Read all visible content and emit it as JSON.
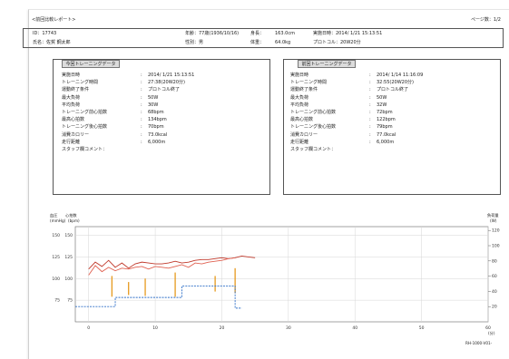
{
  "report": {
    "title": "<前回比較レポート>",
    "page_label": "ページ数：1/2",
    "id_label": "ID：17743",
    "name_label": "氏名：佐賀 鋼太郎",
    "age_label": "年齢：77歳(1936/10/16)",
    "height_label": "身長：",
    "height_value": "163.0cm",
    "sex_label": "性別：男",
    "weight_label": "体重：",
    "weight_value": "64.0kg",
    "date_label": "実施日時：2014/ 1/21 15:13:51",
    "protocol_label": "プロトコル：20W20分",
    "footer_model": "RH-1000-V01-"
  },
  "current_panel": {
    "header": "今回トレーニングデータ",
    "rows": [
      {
        "label": "実施日時",
        "value": "2014/ 1/21  15:13:51"
      },
      {
        "label": "トレーニング時間",
        "value": "27:38(20W20分)"
      },
      {
        "label": "運動終了条件",
        "value": "プロトコル終了"
      },
      {
        "label": "最大負荷",
        "value": "50W"
      },
      {
        "label": "平均負荷",
        "value": "30W"
      },
      {
        "label": "トレーニング前心拍数",
        "value": "68bpm"
      },
      {
        "label": "最高心拍数",
        "value": "134bpm"
      },
      {
        "label": "トレーニング後心拍数",
        "value": "70bpm"
      },
      {
        "label": "消費カロリー",
        "value": "73.0kcal"
      },
      {
        "label": "走行距離",
        "value": "6,000m"
      },
      {
        "label": "スタッフ欄コメント：",
        "value": ""
      }
    ]
  },
  "previous_panel": {
    "header": "前回トレーニングデータ",
    "rows": [
      {
        "label": "実施日時",
        "value": "2014/ 1/14  11:16:09"
      },
      {
        "label": "トレーニング時間",
        "value": "32:55(20W20分)"
      },
      {
        "label": "運動終了条件",
        "value": "プロトコル終了"
      },
      {
        "label": "最大負荷",
        "value": "50W"
      },
      {
        "label": "平均負荷",
        "value": "32W"
      },
      {
        "label": "トレーニング前心拍数",
        "value": "72bpm"
      },
      {
        "label": "最高心拍数",
        "value": "122bpm"
      },
      {
        "label": "トレーニング後心拍数",
        "value": "79bpm"
      },
      {
        "label": "消費カロリー",
        "value": "77.0kcal"
      },
      {
        "label": "走行距離",
        "value": "6,000m"
      },
      {
        "label": "スタッフ欄コメント：",
        "value": ""
      }
    ]
  },
  "chart_data": {
    "type": "line",
    "title": "",
    "left_axis_header_1": "血圧",
    "left_axis_header_2": "心拍数",
    "left_axis_unit_1": "(mmHg)",
    "left_axis_unit_2": "(bpm)",
    "right_axis_header": "負荷量",
    "right_axis_unit": "(W)",
    "x_unit": "(分)",
    "x_ticks": [
      0,
      10,
      20,
      30,
      40,
      50,
      60
    ],
    "xlim": [
      -2,
      60
    ],
    "y_ticks": [
      75,
      100,
      125,
      150
    ],
    "ylim": [
      50,
      160
    ],
    "right_ticks": [
      20,
      40,
      60,
      80,
      100,
      120
    ],
    "right_lim": [
      0,
      125
    ],
    "series": [
      {
        "name": "",
        "color": "#c0392b",
        "x": [
          0,
          1,
          2,
          3,
          4,
          5,
          6,
          7,
          8,
          9,
          10,
          11,
          12,
          13,
          14,
          15,
          16,
          17,
          18,
          19,
          20,
          21,
          22,
          23,
          24,
          25
        ],
        "y": [
          111,
          119,
          114,
          121,
          113,
          118,
          112,
          117,
          119,
          118,
          117,
          117,
          118,
          120,
          118,
          119,
          121,
          122,
          122,
          123,
          124,
          123,
          124,
          126,
          125,
          124
        ]
      },
      {
        "name": "",
        "color": "#e06050",
        "x": [
          0,
          1,
          2,
          3,
          4,
          5,
          6,
          7,
          8,
          9,
          10,
          11,
          12,
          13,
          14,
          15,
          16,
          17,
          18,
          19,
          20,
          21,
          22
        ],
        "y": [
          104,
          115,
          108,
          113,
          109,
          112,
          111,
          113,
          114,
          111,
          114,
          113,
          112,
          114,
          116,
          113,
          118,
          117,
          119,
          120,
          121,
          123,
          124
        ]
      },
      {
        "name": "",
        "color": "#2e6fc7",
        "x": [
          -2,
          4,
          4,
          14,
          14,
          22,
          22,
          23
        ],
        "y": [
          20,
          20,
          32,
          32,
          47,
          47,
          18,
          18
        ]
      }
    ],
    "markers": {
      "color": "#e69a1e",
      "x": [
        3.5,
        6,
        8.5,
        13,
        19,
        22
      ],
      "top": [
        103,
        96,
        100,
        107,
        103,
        112
      ],
      "bottom": [
        79,
        81,
        80,
        79,
        85,
        83
      ]
    }
  }
}
